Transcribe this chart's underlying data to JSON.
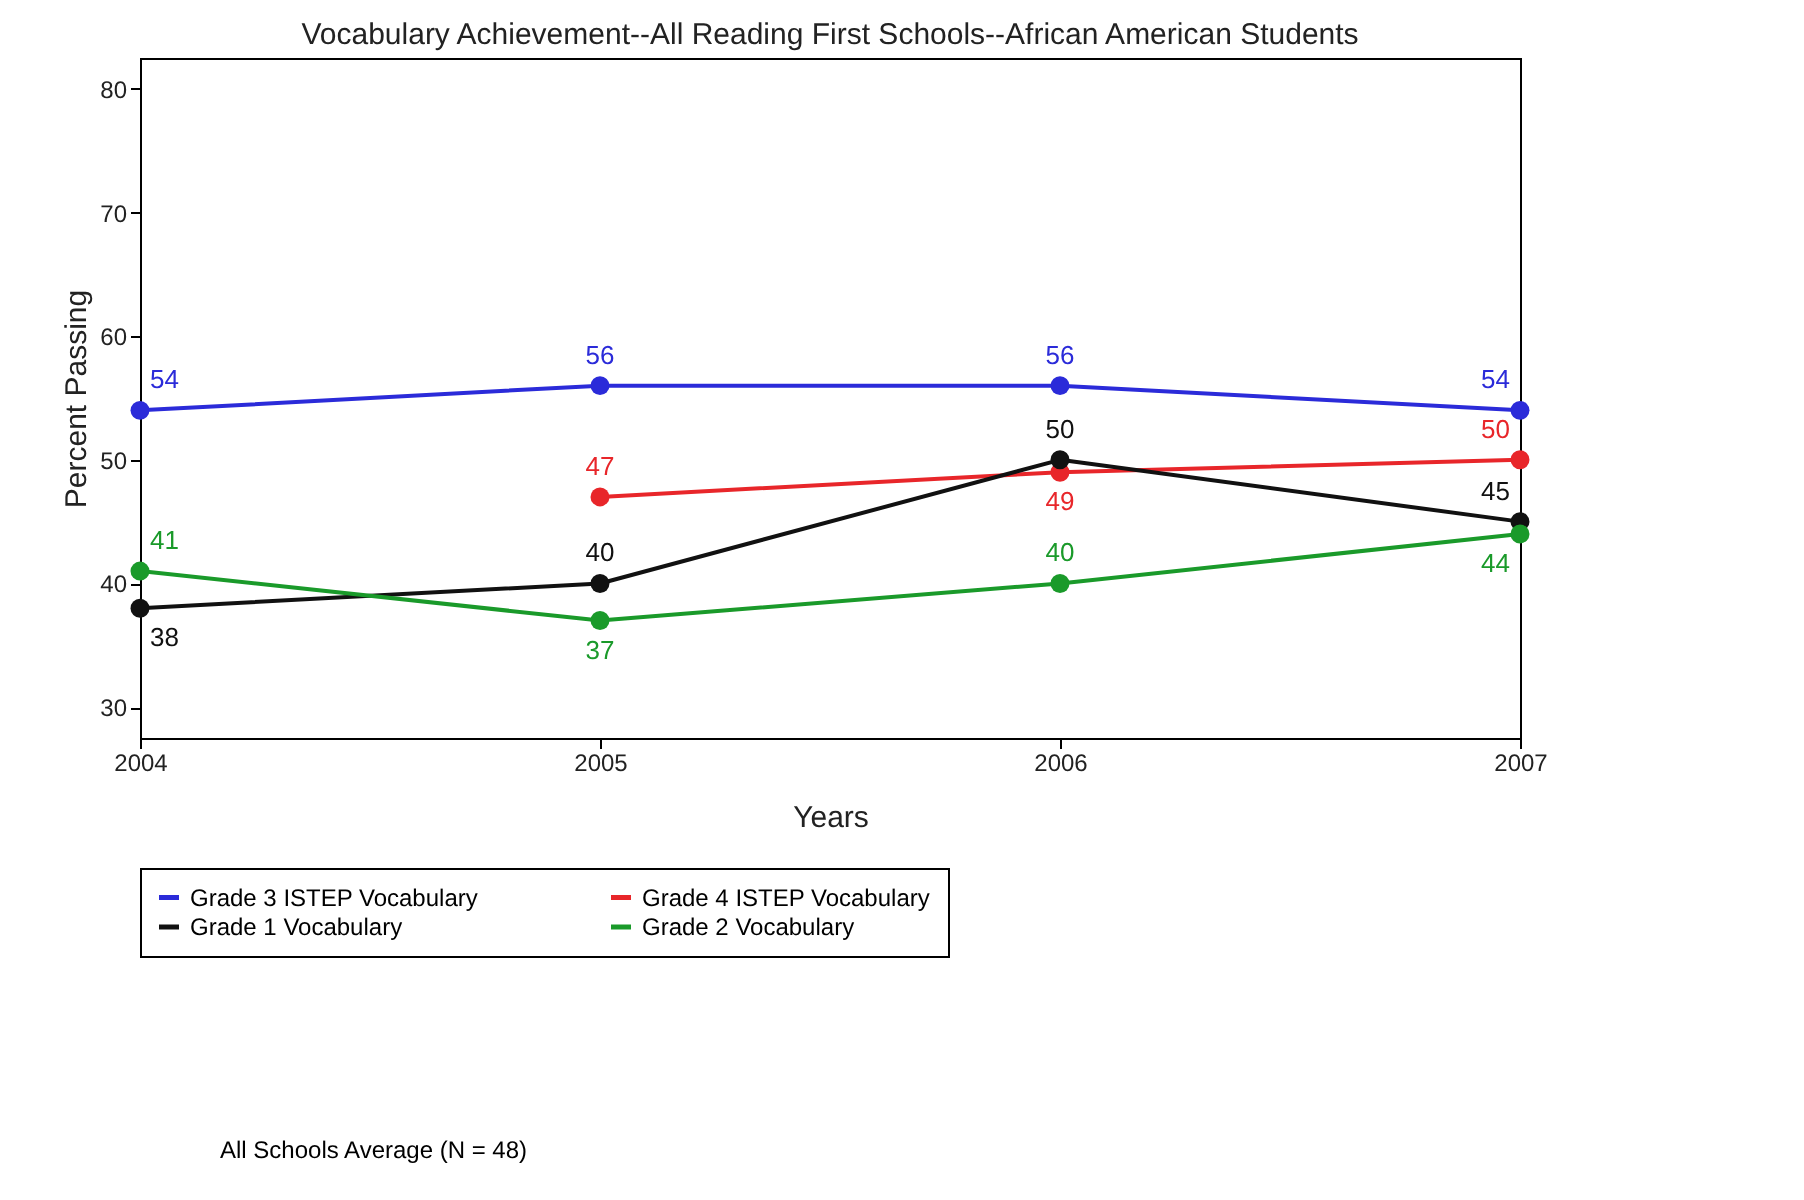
{
  "chart_data": {
    "type": "line",
    "title": "Vocabulary Achievement--All Reading First Schools--African American Students",
    "xlabel": "Years",
    "ylabel": "Percent Passing",
    "x": [
      2004,
      2005,
      2006,
      2007
    ],
    "series": [
      {
        "name": "Grade 3 ISTEP Vocabulary",
        "color": "#2b2bd9",
        "values": [
          54,
          56,
          56,
          54
        ]
      },
      {
        "name": "Grade 4 ISTEP Vocabulary",
        "color": "#e8262a",
        "values": [
          null,
          47,
          49,
          50
        ]
      },
      {
        "name": "Grade 1 Vocabulary",
        "color": "#111111",
        "values": [
          38,
          40,
          50,
          45
        ]
      },
      {
        "name": "Grade 2 Vocabulary",
        "color": "#1a9a2a",
        "values": [
          41,
          37,
          40,
          44
        ]
      }
    ],
    "xlim": [
      2004,
      2007
    ],
    "xticks": [
      2004,
      2005,
      2006,
      2007
    ],
    "ylim": [
      27.5,
      82.5
    ],
    "yticks": [
      30,
      40,
      50,
      60,
      70,
      80
    ],
    "data_labels": true,
    "grid": false,
    "legend": "bottom",
    "marker": "circle",
    "line_style": "solid",
    "annotations": [
      "All Schools Average (N = 48)"
    ]
  }
}
